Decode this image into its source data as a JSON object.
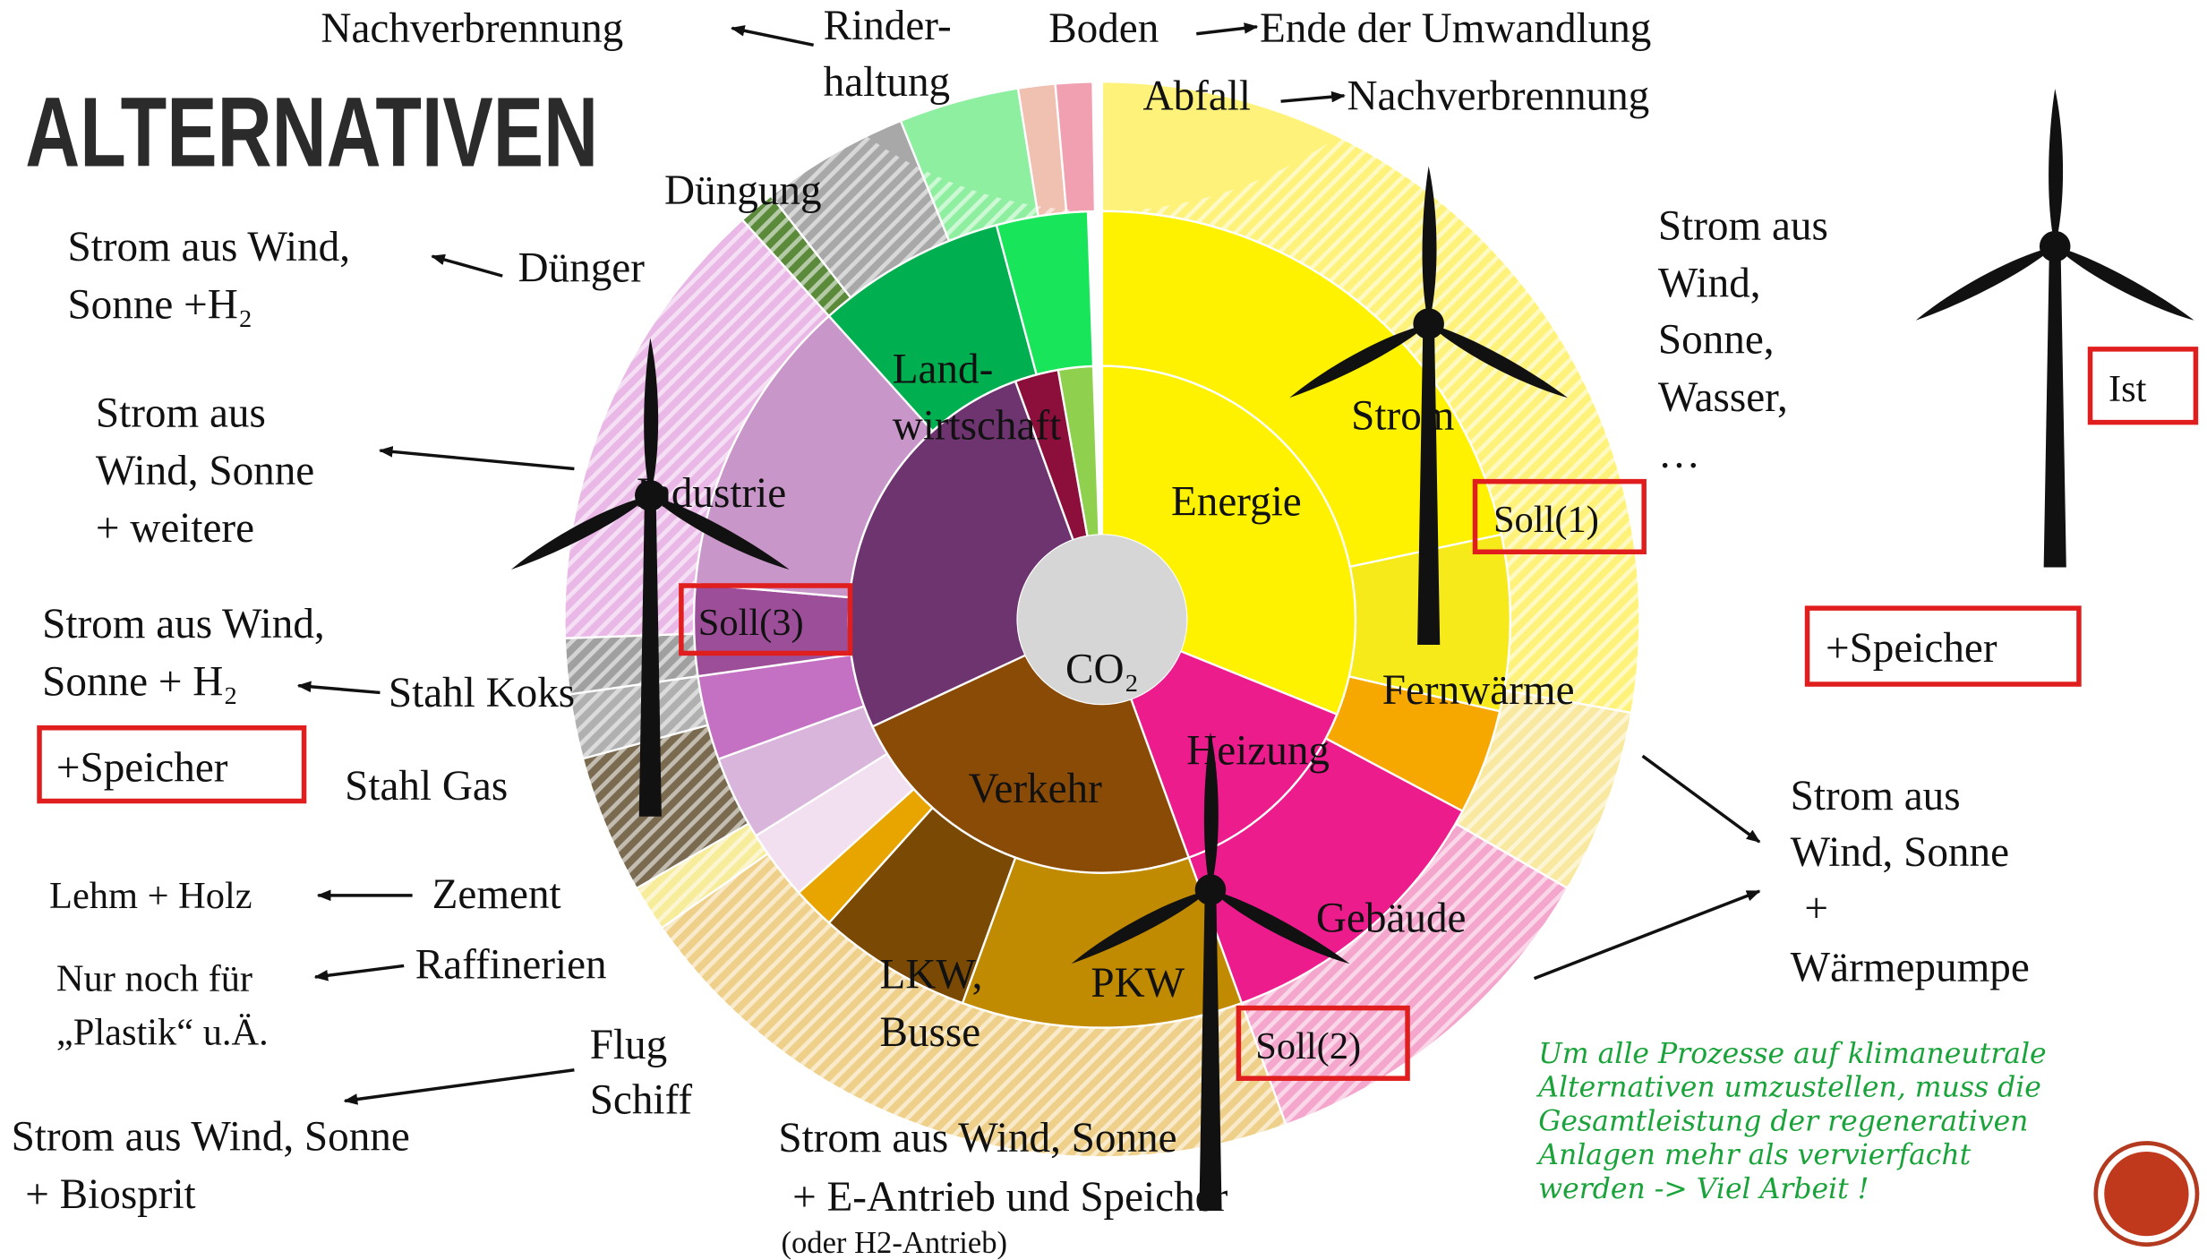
{
  "title": "ALTERNATIVEN",
  "labels": {
    "nachverbrennung_1": "Nachverbrennung",
    "rinderhaltung": [
      "Rinder-",
      "haltung"
    ],
    "boden": "Boden",
    "ende": "Ende der Umwandlung",
    "abfall": "Abfall",
    "nachverbrennung_2": "Nachverbrennung",
    "duengung": "Düngung",
    "duenger": "Dünger",
    "landwirtschaft": [
      "Land-",
      "wirtschaft"
    ],
    "industrie": "Industrie",
    "energie": "Energie",
    "strom": "Strom",
    "co2": "CO₂",
    "fernwaerme": "Fernwärme",
    "heizung": "Heizung",
    "verkehr": "Verkehr",
    "stahl_koks": "Stahl Koks",
    "stahl_gas": "Stahl Gas",
    "zement": "Zement",
    "raffinerien": "Raffinerien",
    "gebaeude": "Gebäude",
    "lkw": [
      "LKW,",
      "Busse"
    ],
    "pkw": "PKW",
    "flug": [
      "Flug",
      "Schiff"
    ]
  },
  "alternatives": {
    "duenger": [
      "Strom aus Wind,",
      "Sonne +H₂"
    ],
    "industrie": [
      "Strom aus",
      "Wind, Sonne",
      "+ weitere"
    ],
    "stahl": [
      "Strom aus Wind,",
      "Sonne + H₂"
    ],
    "zement": "Lehm + Holz",
    "raffinerien": [
      "Nur noch für",
      "„Plastik“ u.Ä."
    ],
    "flug": [
      "Strom aus Wind, Sonne",
      "+ Biosprit"
    ],
    "verkehr": [
      "Strom aus Wind, Sonne",
      "+ E-Antrieb und Speicher",
      "(oder H2-Antrieb)"
    ],
    "gebaeude": [
      "Strom aus",
      "Wind, Sonne",
      "+",
      "Wärmepumpe"
    ],
    "strom": [
      "Strom aus",
      "Wind,",
      "Sonne,",
      "Wasser,",
      "…"
    ]
  },
  "boxes": {
    "soll1": "Soll(1)",
    "soll2": "Soll(2)",
    "soll3": "Soll(3)",
    "ist": "Ist",
    "speicher_left": "+Speicher",
    "speicher_right": "+Speicher"
  },
  "note": [
    "Um alle Prozesse auf klimaneutrale",
    "Alternativen umzustellen, muss die",
    "Gesamtleistung der regenerativen",
    "Anlagen mehr als vervierfacht",
    "werden -> Viel Arbeit !"
  ]
}
